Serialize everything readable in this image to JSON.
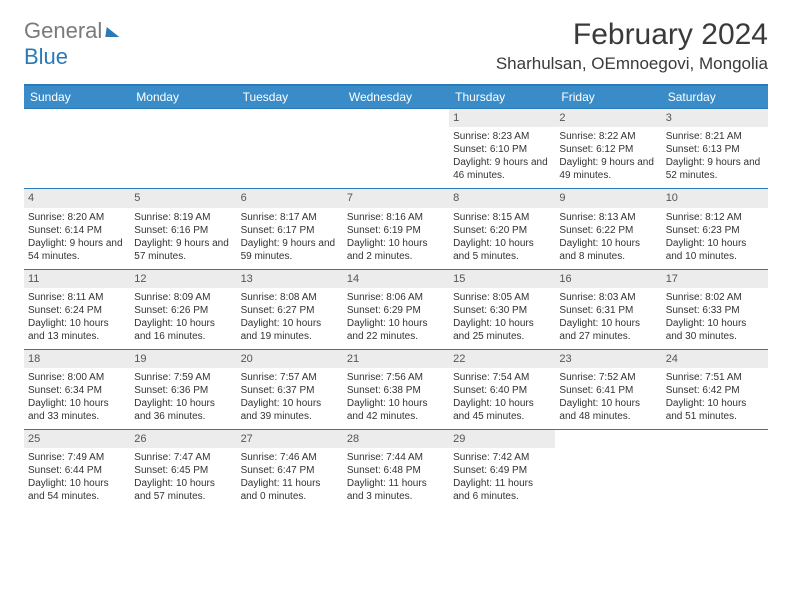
{
  "brand": {
    "part1": "General",
    "part2": "Blue"
  },
  "title": "February 2024",
  "location": "Sharhulsan, OEmnoegovi, Mongolia",
  "colors": {
    "header_bar": "#3a8cc9",
    "rule": "#2a7ab9",
    "daynum_bg": "#ececec",
    "text": "#333333",
    "brand_gray": "#7a7a7a",
    "brand_blue": "#2a7ab9"
  },
  "day_headers": [
    "Sunday",
    "Monday",
    "Tuesday",
    "Wednesday",
    "Thursday",
    "Friday",
    "Saturday"
  ],
  "weeks": [
    [
      null,
      null,
      null,
      null,
      {
        "n": "1",
        "sr": "8:23 AM",
        "ss": "6:10 PM",
        "dl": "9 hours and 46 minutes."
      },
      {
        "n": "2",
        "sr": "8:22 AM",
        "ss": "6:12 PM",
        "dl": "9 hours and 49 minutes."
      },
      {
        "n": "3",
        "sr": "8:21 AM",
        "ss": "6:13 PM",
        "dl": "9 hours and 52 minutes."
      }
    ],
    [
      {
        "n": "4",
        "sr": "8:20 AM",
        "ss": "6:14 PM",
        "dl": "9 hours and 54 minutes."
      },
      {
        "n": "5",
        "sr": "8:19 AM",
        "ss": "6:16 PM",
        "dl": "9 hours and 57 minutes."
      },
      {
        "n": "6",
        "sr": "8:17 AM",
        "ss": "6:17 PM",
        "dl": "9 hours and 59 minutes."
      },
      {
        "n": "7",
        "sr": "8:16 AM",
        "ss": "6:19 PM",
        "dl": "10 hours and 2 minutes."
      },
      {
        "n": "8",
        "sr": "8:15 AM",
        "ss": "6:20 PM",
        "dl": "10 hours and 5 minutes."
      },
      {
        "n": "9",
        "sr": "8:13 AM",
        "ss": "6:22 PM",
        "dl": "10 hours and 8 minutes."
      },
      {
        "n": "10",
        "sr": "8:12 AM",
        "ss": "6:23 PM",
        "dl": "10 hours and 10 minutes."
      }
    ],
    [
      {
        "n": "11",
        "sr": "8:11 AM",
        "ss": "6:24 PM",
        "dl": "10 hours and 13 minutes."
      },
      {
        "n": "12",
        "sr": "8:09 AM",
        "ss": "6:26 PM",
        "dl": "10 hours and 16 minutes."
      },
      {
        "n": "13",
        "sr": "8:08 AM",
        "ss": "6:27 PM",
        "dl": "10 hours and 19 minutes."
      },
      {
        "n": "14",
        "sr": "8:06 AM",
        "ss": "6:29 PM",
        "dl": "10 hours and 22 minutes."
      },
      {
        "n": "15",
        "sr": "8:05 AM",
        "ss": "6:30 PM",
        "dl": "10 hours and 25 minutes."
      },
      {
        "n": "16",
        "sr": "8:03 AM",
        "ss": "6:31 PM",
        "dl": "10 hours and 27 minutes."
      },
      {
        "n": "17",
        "sr": "8:02 AM",
        "ss": "6:33 PM",
        "dl": "10 hours and 30 minutes."
      }
    ],
    [
      {
        "n": "18",
        "sr": "8:00 AM",
        "ss": "6:34 PM",
        "dl": "10 hours and 33 minutes."
      },
      {
        "n": "19",
        "sr": "7:59 AM",
        "ss": "6:36 PM",
        "dl": "10 hours and 36 minutes."
      },
      {
        "n": "20",
        "sr": "7:57 AM",
        "ss": "6:37 PM",
        "dl": "10 hours and 39 minutes."
      },
      {
        "n": "21",
        "sr": "7:56 AM",
        "ss": "6:38 PM",
        "dl": "10 hours and 42 minutes."
      },
      {
        "n": "22",
        "sr": "7:54 AM",
        "ss": "6:40 PM",
        "dl": "10 hours and 45 minutes."
      },
      {
        "n": "23",
        "sr": "7:52 AM",
        "ss": "6:41 PM",
        "dl": "10 hours and 48 minutes."
      },
      {
        "n": "24",
        "sr": "7:51 AM",
        "ss": "6:42 PM",
        "dl": "10 hours and 51 minutes."
      }
    ],
    [
      {
        "n": "25",
        "sr": "7:49 AM",
        "ss": "6:44 PM",
        "dl": "10 hours and 54 minutes."
      },
      {
        "n": "26",
        "sr": "7:47 AM",
        "ss": "6:45 PM",
        "dl": "10 hours and 57 minutes."
      },
      {
        "n": "27",
        "sr": "7:46 AM",
        "ss": "6:47 PM",
        "dl": "11 hours and 0 minutes."
      },
      {
        "n": "28",
        "sr": "7:44 AM",
        "ss": "6:48 PM",
        "dl": "11 hours and 3 minutes."
      },
      {
        "n": "29",
        "sr": "7:42 AM",
        "ss": "6:49 PM",
        "dl": "11 hours and 6 minutes."
      },
      null,
      null
    ]
  ],
  "labels": {
    "sunrise": "Sunrise: ",
    "sunset": "Sunset: ",
    "daylight": "Daylight: "
  }
}
